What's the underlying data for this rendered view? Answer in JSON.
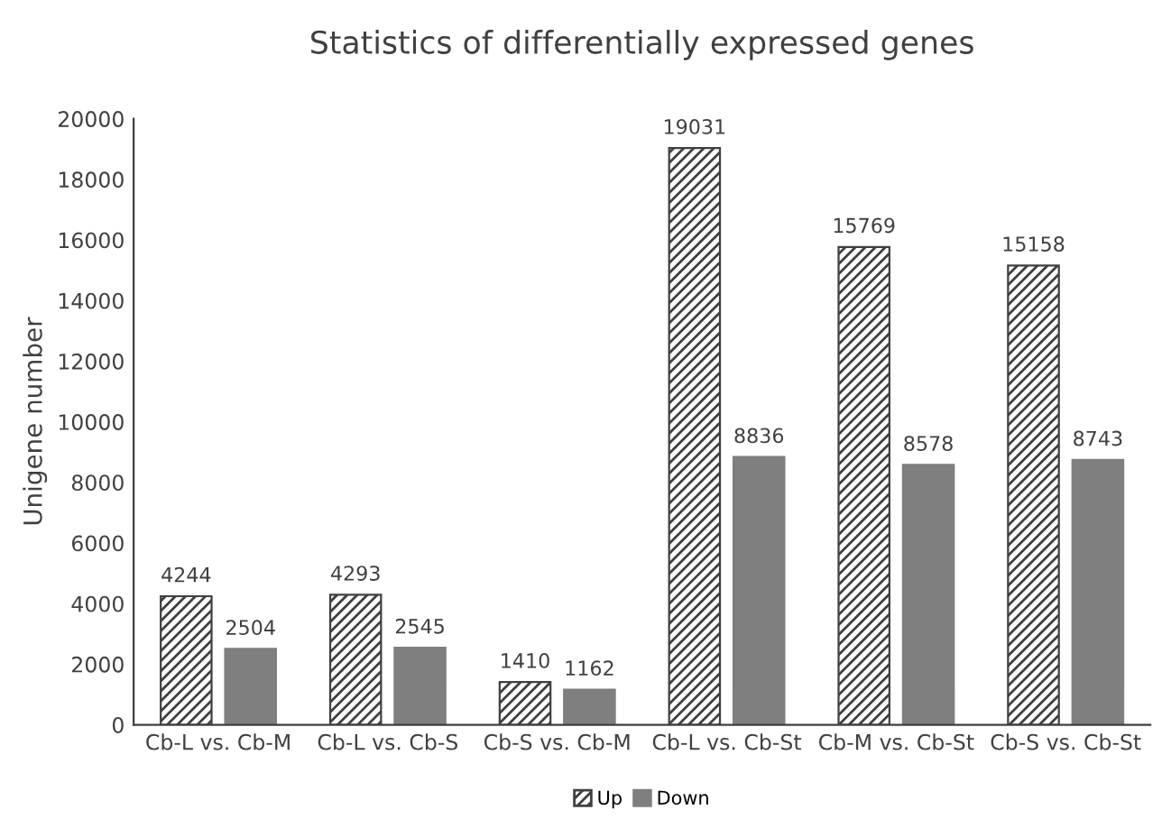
{
  "chart_data": {
    "type": "bar",
    "title": "Statistics of differentially expressed genes",
    "ylabel": "Unigene number",
    "categories": [
      "Cb-L vs. Cb-M",
      "Cb-L vs. Cb-S",
      "Cb-S vs. Cb-M",
      "Cb-L vs. Cb-St",
      "Cb-M vs. Cb-St",
      "Cb-S vs. Cb-St"
    ],
    "series": [
      {
        "name": "Up",
        "color": "#404040",
        "values": [
          4244,
          4293,
          1410,
          19031,
          15769,
          15158
        ]
      },
      {
        "name": "Down",
        "color": "#7f7f7f",
        "values": [
          2504,
          2545,
          1162,
          8836,
          8578,
          8743
        ]
      }
    ],
    "ylim": [
      0,
      20000
    ],
    "yticks": [
      0,
      2000,
      4000,
      6000,
      8000,
      10000,
      12000,
      14000,
      16000,
      18000,
      20000
    ],
    "data_labels": true,
    "grid": false,
    "legend": "bottom"
  }
}
